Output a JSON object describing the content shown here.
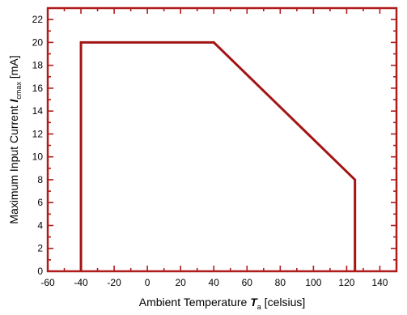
{
  "colors": {
    "frame": "#b01c1c",
    "series": "#a31515",
    "text": "#000000"
  },
  "chart_data": {
    "type": "line",
    "title": "",
    "xlabel": {
      "prefix": "Ambient Temperature ",
      "symbol": "T",
      "subscript": "a",
      "suffix": " [celsius]"
    },
    "ylabel": {
      "prefix": "Maximum Input Current ",
      "symbol": "I",
      "subscript": "cmax",
      "suffix": " [mA]"
    },
    "xlim": [
      -60,
      150
    ],
    "ylim": [
      0,
      23
    ],
    "x_ticks": [
      -60,
      -40,
      -20,
      0,
      20,
      40,
      60,
      80,
      100,
      120,
      140
    ],
    "y_ticks": [
      0,
      2,
      4,
      6,
      8,
      10,
      12,
      14,
      16,
      18,
      20,
      22
    ],
    "x_minor_step": 10,
    "y_minor_step": 1,
    "grid": false,
    "legend": "none",
    "series": [
      {
        "x": [
          -40,
          -40,
          40,
          125,
          125
        ],
        "y": [
          0,
          20,
          20,
          8,
          0
        ]
      }
    ]
  }
}
